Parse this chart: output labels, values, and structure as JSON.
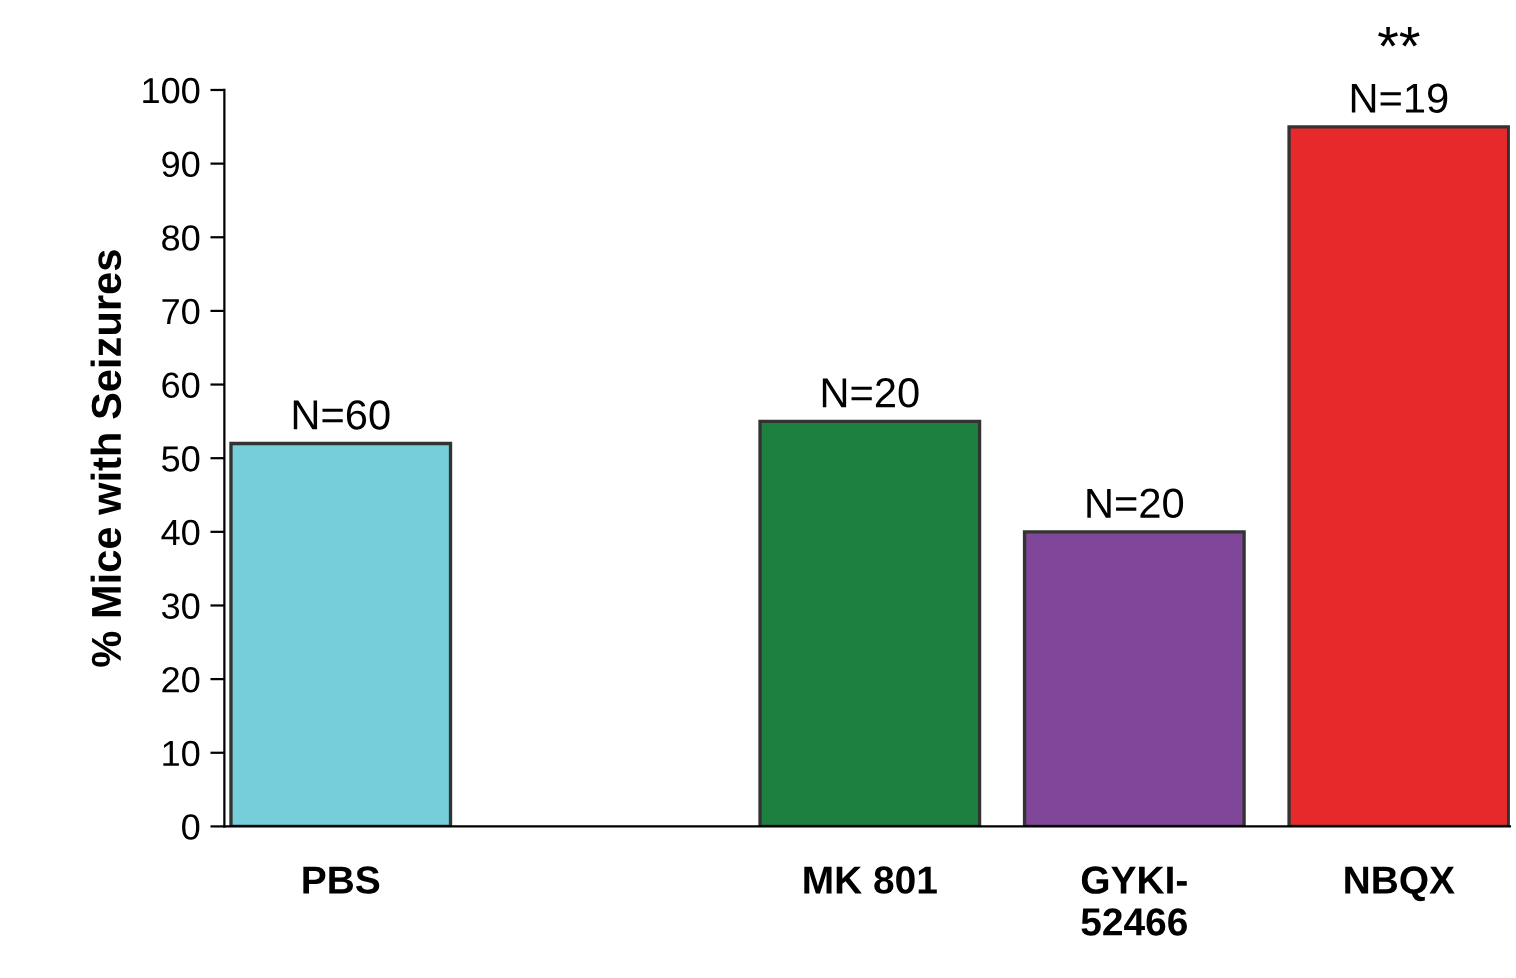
{
  "chart_data": {
    "type": "bar",
    "categories": [
      "PBS",
      null,
      "MK 801",
      "GYKI-\n52466",
      "NBQX"
    ],
    "values": [
      52,
      null,
      55,
      40,
      95
    ],
    "colors": [
      "#76cedb",
      "#ffffff",
      "#1e8040",
      "#80469a",
      "#e8292b"
    ],
    "ylabel": "% Mice with Seizures",
    "ylim": [
      0,
      100
    ],
    "yticks": [
      0,
      10,
      20,
      30,
      40,
      50,
      60,
      70,
      80,
      90,
      100
    ],
    "annotations": [
      {
        "text": "N=60",
        "x": "PBS",
        "y": 52
      },
      {
        "text": "N=20",
        "x": "MK 801",
        "y": 55
      },
      {
        "text": "N=20",
        "x": "GYKI-\n52466",
        "y": 40
      },
      {
        "text": "N=19",
        "x": "NBQX",
        "y": 95
      },
      {
        "text": "**",
        "x": "NBQX",
        "y": 95
      }
    ],
    "grid": false,
    "legend": false
  }
}
